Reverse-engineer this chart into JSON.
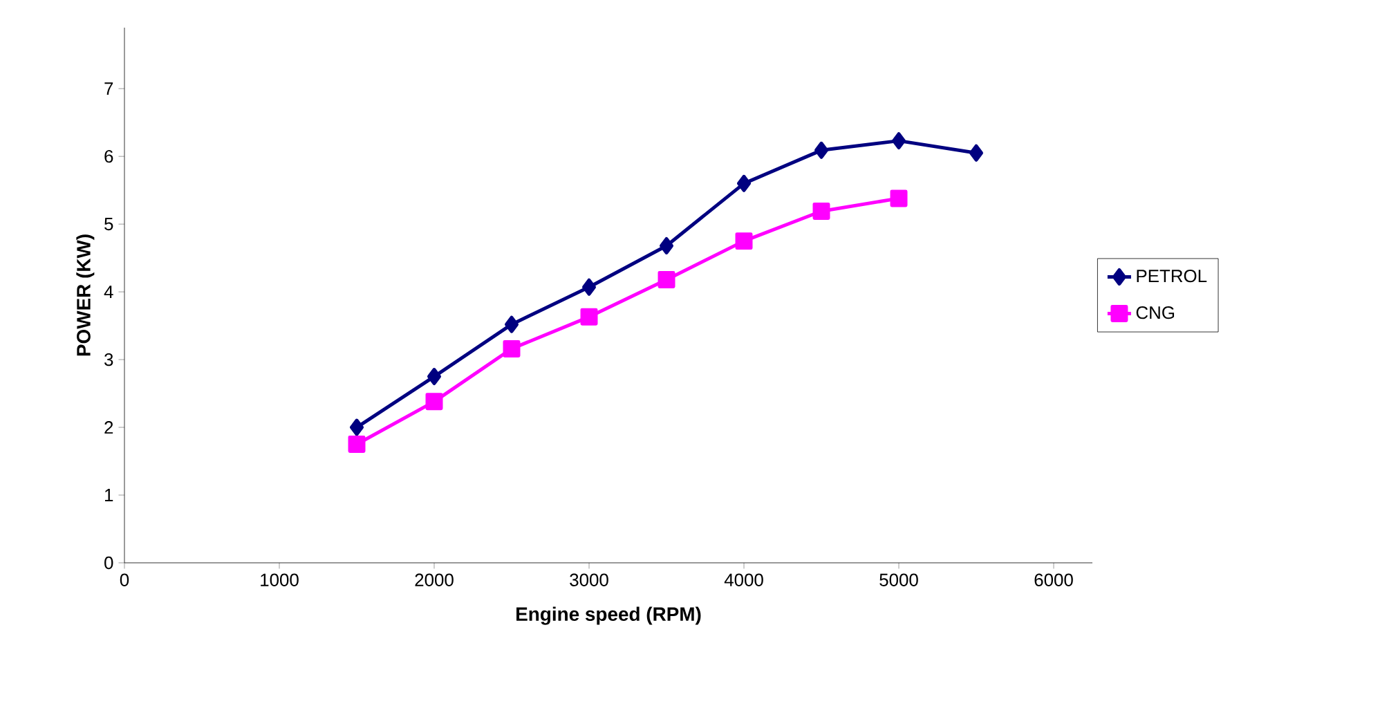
{
  "chart_data": {
    "type": "line",
    "xlabel": "Engine speed (RPM)",
    "ylabel": "POWER (KW)",
    "x": [
      1500,
      2000,
      2500,
      3000,
      3500,
      4000,
      4500,
      5000,
      5500
    ],
    "series": [
      {
        "name": "PETROL",
        "color": "#000080",
        "marker": "diamond",
        "values": [
          2.0,
          2.75,
          3.52,
          4.07,
          4.68,
          5.6,
          6.09,
          6.23,
          6.05
        ]
      },
      {
        "name": "CNG",
        "color": "#ff00ff",
        "marker": "square",
        "values": [
          1.75,
          2.38,
          3.16,
          3.63,
          4.18,
          4.75,
          5.19,
          5.38,
          null
        ]
      }
    ],
    "xlim": [
      0,
      6250
    ],
    "ylim": [
      0,
      7.9
    ],
    "xticks": [
      0,
      1000,
      2000,
      3000,
      4000,
      5000,
      6000
    ],
    "yticks": [
      0,
      1,
      2,
      3,
      4,
      5,
      6,
      7
    ],
    "grid": false,
    "legend": "right",
    "line_style": "solid"
  }
}
